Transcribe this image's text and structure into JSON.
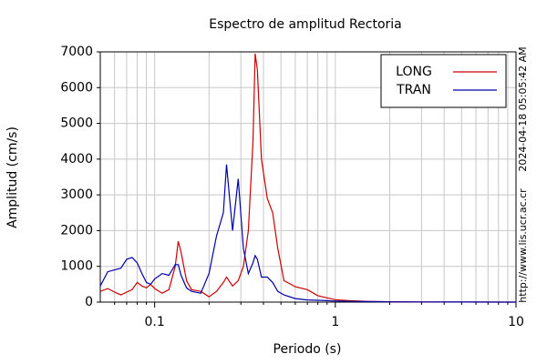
{
  "chart_data": {
    "type": "line",
    "title": "Espectro de amplitud Rectoria",
    "x_label": "Periodo (s)",
    "y_label": "Amplitud (cm/s)",
    "x_scale": "log",
    "grid": true,
    "legend_position": "upper right",
    "timestamp": "2024-04-18 05:05:42 AM",
    "source": "http://www.lis.ucr.ac.cr",
    "xlim": [
      0.05,
      10
    ],
    "xticks": [
      0.1,
      1,
      10
    ],
    "x_minor_ticks": [
      0.06,
      0.07,
      0.08,
      0.09,
      0.2,
      0.3,
      0.4,
      0.5,
      0.6,
      0.7,
      0.8,
      0.9,
      2,
      3,
      4,
      5,
      6,
      7,
      8,
      9
    ],
    "ylim": [
      0,
      7000
    ],
    "yticks": [
      0,
      1000,
      2000,
      3000,
      4000,
      5000,
      6000,
      7000
    ],
    "x": [
      0.05,
      0.055,
      0.06,
      0.065,
      0.07,
      0.075,
      0.08,
      0.085,
      0.09,
      0.095,
      0.1,
      0.11,
      0.12,
      0.13,
      0.135,
      0.14,
      0.15,
      0.16,
      0.18,
      0.2,
      0.22,
      0.24,
      0.25,
      0.27,
      0.29,
      0.31,
      0.33,
      0.35,
      0.36,
      0.37,
      0.39,
      0.42,
      0.45,
      0.48,
      0.52,
      0.6,
      0.7,
      0.8,
      0.9,
      1,
      1.2,
      1.5,
      2,
      3,
      5,
      10
    ],
    "series": [
      {
        "name": "LONG",
        "color": "#cc0000",
        "values": [
          300,
          380,
          280,
          200,
          280,
          350,
          550,
          450,
          400,
          500,
          380,
          250,
          350,
          1000,
          1700,
          1400,
          600,
          350,
          300,
          150,
          300,
          550,
          700,
          450,
          600,
          1000,
          2000,
          4500,
          6950,
          6500,
          4000,
          2900,
          2500,
          1500,
          600,
          430,
          350,
          180,
          120,
          70,
          40,
          20,
          10,
          5,
          2,
          1
        ]
      },
      {
        "name": "TRAN",
        "color": "#0000aa",
        "values": [
          450,
          850,
          900,
          950,
          1200,
          1250,
          1100,
          800,
          550,
          500,
          650,
          800,
          750,
          1050,
          1050,
          750,
          400,
          300,
          250,
          800,
          1850,
          2500,
          3850,
          2000,
          3450,
          1500,
          800,
          1100,
          1300,
          1200,
          700,
          700,
          550,
          300,
          200,
          100,
          60,
          50,
          40,
          30,
          20,
          15,
          8,
          5,
          2,
          1
        ]
      }
    ]
  }
}
